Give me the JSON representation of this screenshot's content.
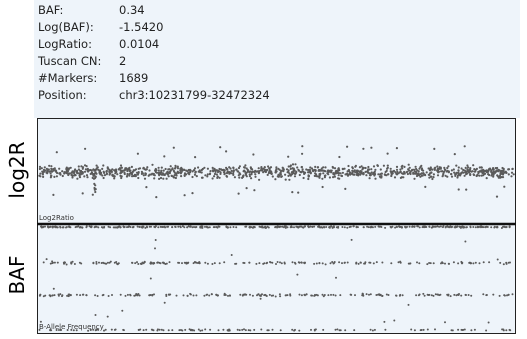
{
  "info": {
    "rows": [
      {
        "label": "BAF:",
        "value": "0.34"
      },
      {
        "label": "Log(BAF):",
        "value": "-1.5420"
      },
      {
        "label": "LogRatio:",
        "value": "0.0104"
      },
      {
        "label": "Tuscan CN:",
        "value": "2"
      },
      {
        "label": "#Markers:",
        "value": "1689"
      },
      {
        "label": "Position:",
        "value": "chr3:10231799-32472324"
      }
    ]
  },
  "tracks": {
    "log2r": {
      "side_label": "log2R",
      "caption": "Log2Ratio"
    },
    "baf": {
      "side_label": "BAF",
      "caption": "B-Allele Frequency"
    }
  },
  "colors": {
    "background": "#eef4fa",
    "points": "#5a5a5a",
    "frame": "#222222"
  }
}
